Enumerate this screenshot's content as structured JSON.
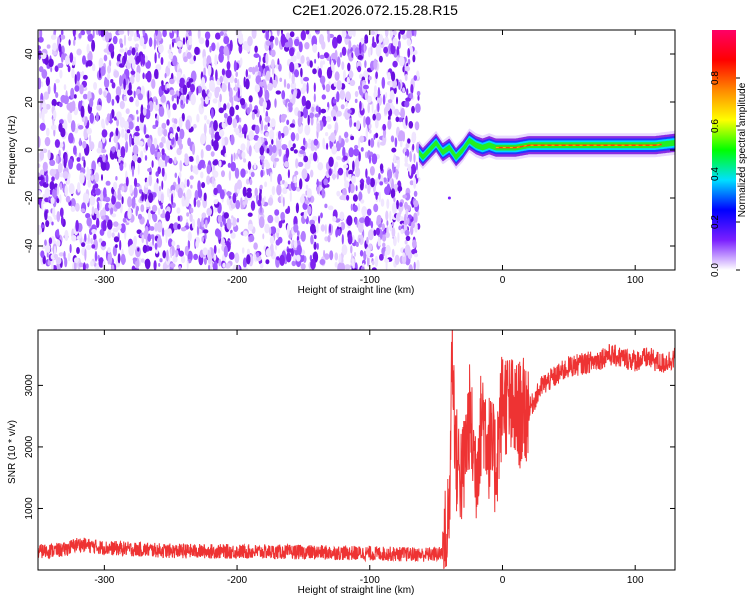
{
  "title": "C2E1.2026.072.15.28.R15",
  "colors": {
    "snr_line": "#ee3333",
    "axis": "#000000"
  },
  "chart_data": [
    {
      "type": "heatmap",
      "xlabel": "Height of straight line (km)",
      "ylabel": "Frequency (Hz)",
      "xlim": [
        -350,
        130
      ],
      "ylim": [
        -50,
        50
      ],
      "xticks": [
        -300,
        -200,
        -100,
        0,
        100
      ],
      "yticks": [
        -40,
        -20,
        0,
        20,
        40
      ],
      "colorbar": {
        "label": "Normalized spectral amplitude",
        "range": [
          0.0,
          1.0
        ],
        "ticks": [
          "0.0",
          "0.2",
          "0.4",
          "0.6",
          "0.8"
        ],
        "colormap": [
          "#ffffff",
          "#7a1fff",
          "#0000ff",
          "#00e0ff",
          "#00ff00",
          "#ffff00",
          "#ff8800",
          "#ff0000",
          "#ff0066"
        ]
      },
      "noise_region_x": [
        -350,
        -63
      ],
      "ridge": {
        "x": [
          -63,
          -60,
          -55,
          -50,
          -45,
          -40,
          -35,
          -30,
          -25,
          -20,
          -15,
          -10,
          -5,
          0,
          10,
          20,
          40,
          60,
          80,
          100,
          115,
          130
        ],
        "y": [
          -1,
          -3,
          0,
          3,
          -1,
          1,
          -3,
          0,
          4,
          2,
          1,
          2,
          1,
          1,
          1,
          2,
          2,
          2,
          2,
          2,
          2,
          3
        ]
      }
    },
    {
      "type": "line",
      "xlabel": "Height of straight line (km)",
      "ylabel": "SNR (10 * v/v)",
      "xlim": [
        -350,
        130
      ],
      "ylim": [
        0,
        3900
      ],
      "xticks": [
        -300,
        -200,
        -100,
        0,
        100
      ],
      "yticks": [
        1000,
        2000,
        3000
      ],
      "series": [
        {
          "name": "SNR",
          "x": [
            -350,
            -330,
            -320,
            -300,
            -250,
            -200,
            -150,
            -100,
            -60,
            -45,
            -40,
            -38,
            -35,
            -30,
            -25,
            -20,
            -15,
            -10,
            -5,
            0,
            10,
            20,
            30,
            40,
            50,
            60,
            70,
            80,
            90,
            100,
            110,
            120,
            130
          ],
          "values": [
            300,
            330,
            420,
            360,
            310,
            300,
            290,
            270,
            250,
            260,
            900,
            3700,
            1800,
            1500,
            2500,
            1600,
            2600,
            2000,
            1700,
            2800,
            2500,
            2600,
            3000,
            3150,
            3300,
            3350,
            3400,
            3500,
            3450,
            3400,
            3450,
            3350,
            3450
          ]
        }
      ]
    }
  ]
}
